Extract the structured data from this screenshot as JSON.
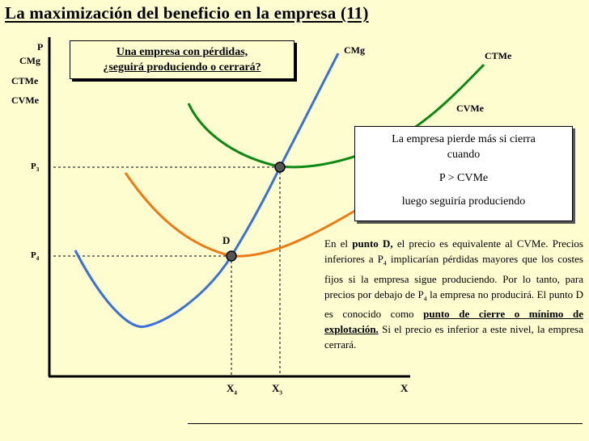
{
  "title": "La maximización del beneficio en la empresa (11)",
  "y_axis_labels": [
    "P",
    "CMg",
    "CTMe",
    "CVMe"
  ],
  "x_axis_label": "X",
  "curve_labels": {
    "cmg": "CMg",
    "ctme": "CTMe",
    "cvme": "CVMe"
  },
  "price_ticks": {
    "p3": "P",
    "p3_sub": "3",
    "p4": "P",
    "p4_sub": "4"
  },
  "quantity_ticks": {
    "x4": "X",
    "x4_sub": "4",
    "x3": "X",
    "x3_sub": "3"
  },
  "point_d_label": "D",
  "question": {
    "line1": "Una empresa con pérdidas,",
    "line2": "¿seguirá produciendo o cerrará?"
  },
  "info": {
    "line1": "La empresa pierde más si cierra",
    "line2": "cuando",
    "line3": "P > CVMe",
    "line4": "luego seguiría produciendo"
  },
  "explanation": {
    "t1": "En el ",
    "b1": "punto D,",
    "t2": " el precio es equivalente al CVMe. Precios inferiores a P",
    "sub": "4",
    "t3": "  implicarían pérdidas mayores que los costes fijos si la empresa sigue produciendo. Por lo tanto, para precios por debajo de P",
    "sub2": "4",
    "t4": " la empresa no producirá. El punto D es conocido como ",
    "u1": "punto de cierre o mínimo de explotación.",
    "t5": " Si el precio es inferior a este nivel, la empresa cerrará."
  },
  "colors": {
    "background": "#fefdcf",
    "cmg": "#3a6fe0",
    "ctme": "#0a8a12",
    "cvme": "#ef7a12",
    "axis": "#000000"
  }
}
